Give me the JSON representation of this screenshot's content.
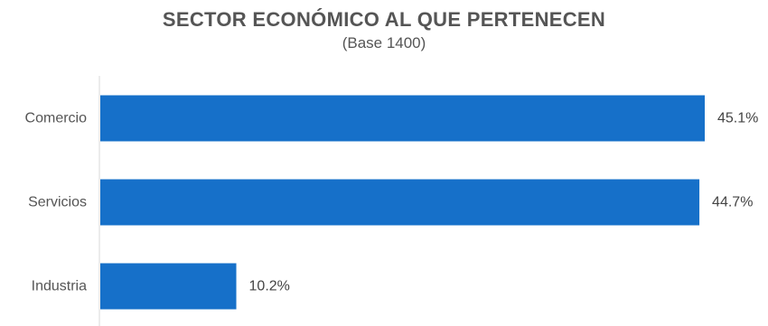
{
  "chart_data": {
    "type": "bar",
    "orientation": "horizontal",
    "title": "SECTOR ECONÓMICO AL QUE PERTENECEN",
    "subtitle": "(Base 1400)",
    "categories": [
      "Comercio",
      "Servicios",
      "Industria"
    ],
    "values": [
      45.1,
      44.7,
      10.2
    ],
    "value_labels": [
      "45.1%",
      "44.7%",
      "10.2%"
    ],
    "xlim": [
      0,
      45.1
    ],
    "grid": false,
    "legend": "none",
    "colors": {
      "bar": "#1670C9",
      "axis": "#d9d9d9"
    }
  }
}
